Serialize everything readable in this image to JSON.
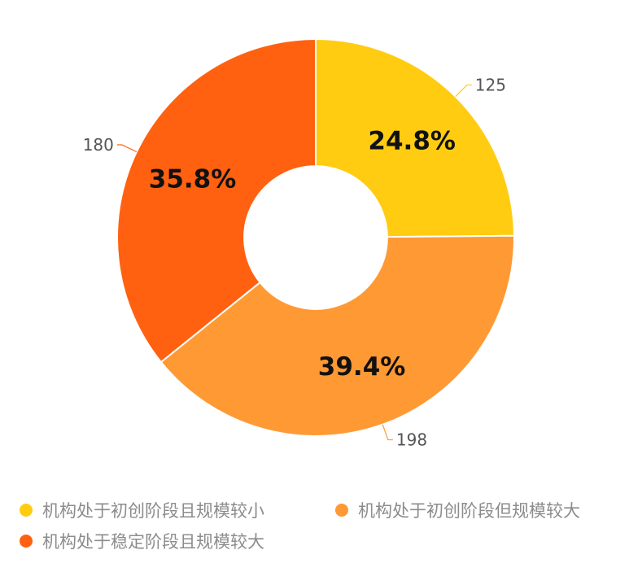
{
  "chart_data": {
    "type": "pie",
    "inner_radius_ratio": 0.36,
    "slices": [
      {
        "name": "机构处于初创阶段且规模较小",
        "value": 125,
        "percent_label": "24.8%",
        "color": "#FFCC11"
      },
      {
        "name": "机构处于初创阶段但规模较大",
        "value": 198,
        "percent_label": "39.4%",
        "color": "#FF9933"
      },
      {
        "name": "机构处于稳定阶段且规模较大",
        "value": 180,
        "percent_label": "35.8%",
        "color": "#FF6111"
      }
    ],
    "legend_position": "bottom-left"
  }
}
